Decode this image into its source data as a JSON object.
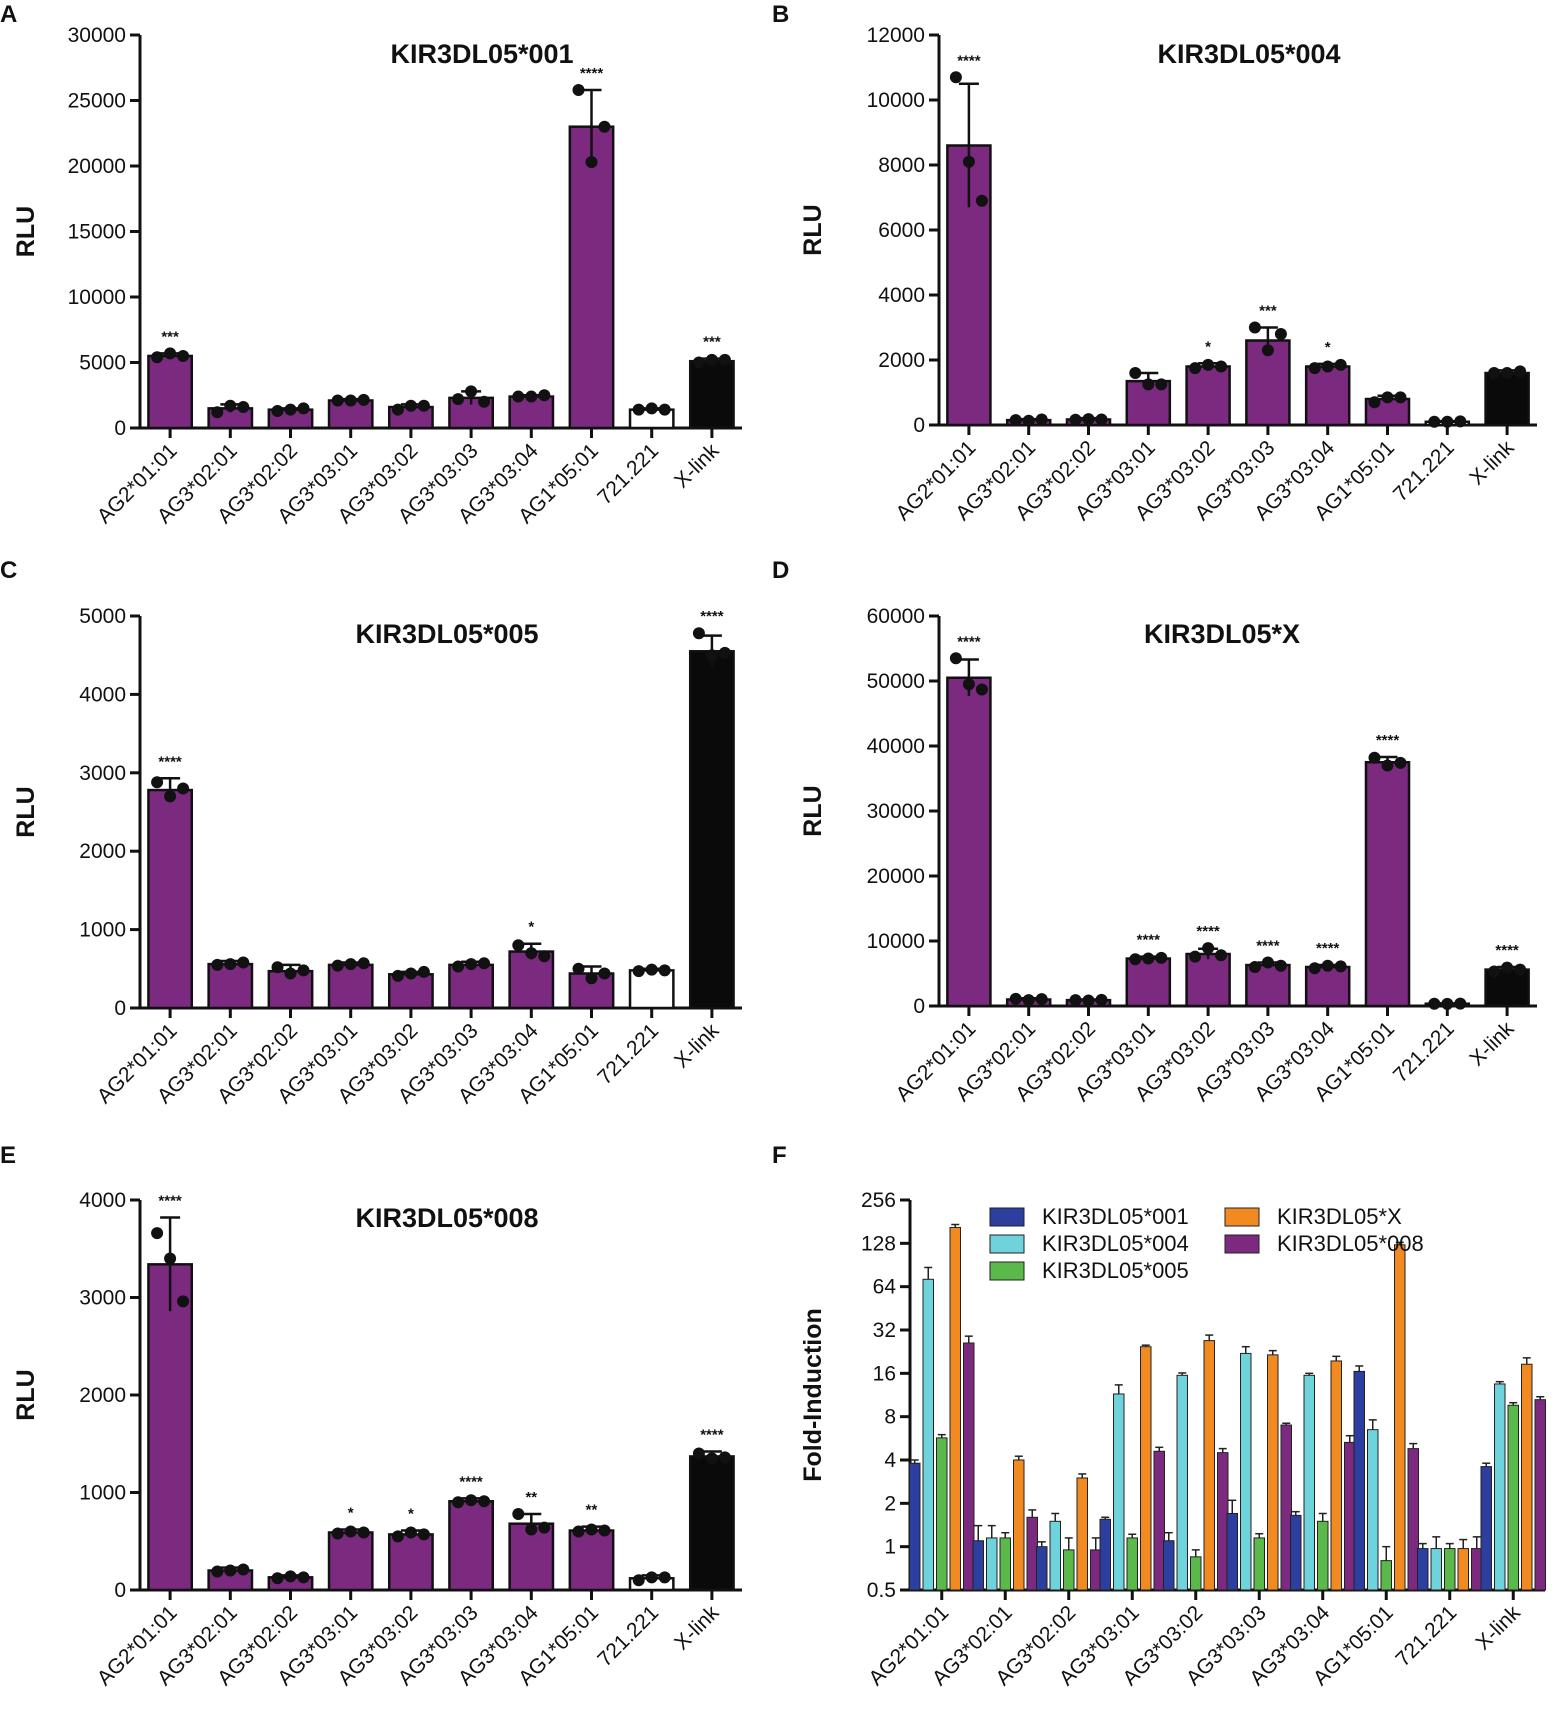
{
  "figure": {
    "panels": [
      {
        "letter": "A",
        "title": "KIR3DL05*001",
        "ylabel": "RLU"
      },
      {
        "letter": "B",
        "title": "KIR3DL05*004",
        "ylabel": "RLU"
      },
      {
        "letter": "C",
        "title": "KIR3DL05*005",
        "ylabel": "RLU"
      },
      {
        "letter": "D",
        "title": "KIR3DL05*X",
        "ylabel": "RLU"
      },
      {
        "letter": "E",
        "title": "KIR3DL05*008",
        "ylabel": "RLU"
      },
      {
        "letter": "F",
        "title": "",
        "ylabel": "Fold-Induction"
      }
    ]
  },
  "colors": {
    "purple": "#7b2a80",
    "black": "#0a0a0a",
    "white": "#ffffff",
    "series": [
      "#2c3e9e",
      "#6fd3dc",
      "#5ab94a",
      "#f28a22",
      "#7b2a80"
    ]
  },
  "chart_data": [
    {
      "type": "bar",
      "panel": "A",
      "title": "KIR3DL05*001",
      "xlabel": "",
      "ylabel": "RLU",
      "ylim": [
        0,
        30000
      ],
      "yticks": [
        "0",
        "5000",
        "10000",
        "15000",
        "20000",
        "25000",
        "30000"
      ],
      "categories": [
        "AG2*01:01",
        "AG3*02:01",
        "AG3*02:02",
        "AG3*03:01",
        "AG3*03:02",
        "AG3*03:03",
        "AG3*03:04",
        "AG1*05:01",
        "721.221",
        "X-link"
      ],
      "values": [
        5500,
        1500,
        1400,
        2100,
        1600,
        2300,
        2400,
        23000,
        1400,
        5100
      ],
      "errors": [
        200,
        300,
        100,
        100,
        200,
        500,
        100,
        2800,
        100,
        200
      ],
      "points": [
        [
          5400,
          5700,
          5500
        ],
        [
          1200,
          1700,
          1600
        ],
        [
          1300,
          1400,
          1500
        ],
        [
          2100,
          2100,
          2150
        ],
        [
          1400,
          1700,
          1700
        ],
        [
          2200,
          2800,
          2000
        ],
        [
          2400,
          2400,
          2500
        ],
        [
          25800,
          20300,
          23000
        ],
        [
          1400,
          1500,
          1400
        ],
        [
          5000,
          5200,
          5200
        ]
      ],
      "significance": [
        "***",
        "",
        "",
        "",
        "",
        "",
        "",
        "****",
        "",
        "***"
      ],
      "bar_colors": [
        "purple",
        "purple",
        "purple",
        "purple",
        "purple",
        "purple",
        "purple",
        "purple",
        "white",
        "black"
      ]
    },
    {
      "type": "bar",
      "panel": "B",
      "title": "KIR3DL05*004",
      "xlabel": "",
      "ylabel": "RLU",
      "ylim": [
        0,
        12000
      ],
      "yticks": [
        "0",
        "2000",
        "4000",
        "6000",
        "8000",
        "10000",
        "12000"
      ],
      "categories": [
        "AG2*01:01",
        "AG3*02:01",
        "AG3*02:02",
        "AG3*03:01",
        "AG3*03:02",
        "AG3*03:03",
        "AG3*03:04",
        "AG1*05:01",
        "721.221",
        "X-link"
      ],
      "values": [
        8600,
        150,
        170,
        1350,
        1800,
        2600,
        1800,
        800,
        100,
        1600
      ],
      "errors": [
        1900,
        30,
        40,
        250,
        100,
        400,
        80,
        100,
        20,
        80
      ],
      "points": [
        [
          10700,
          8100,
          6900
        ],
        [
          150,
          130,
          170
        ],
        [
          160,
          180,
          170
        ],
        [
          1600,
          1250,
          1250
        ],
        [
          1750,
          1850,
          1800
        ],
        [
          3000,
          2300,
          2800
        ],
        [
          1750,
          1800,
          1850
        ],
        [
          700,
          850,
          850
        ],
        [
          100,
          100,
          110
        ],
        [
          1600,
          1600,
          1650
        ]
      ],
      "significance": [
        "****",
        "",
        "",
        "",
        "*",
        "***",
        "*",
        "",
        "",
        ""
      ],
      "bar_colors": [
        "purple",
        "purple",
        "purple",
        "purple",
        "purple",
        "purple",
        "purple",
        "purple",
        "white",
        "black"
      ]
    },
    {
      "type": "bar",
      "panel": "C",
      "title": "KIR3DL05*005",
      "xlabel": "",
      "ylabel": "RLU",
      "ylim": [
        0,
        5000
      ],
      "yticks": [
        "0",
        "1000",
        "2000",
        "3000",
        "4000",
        "5000"
      ],
      "categories": [
        "AG2*01:01",
        "AG3*02:01",
        "AG3*02:02",
        "AG3*03:01",
        "AG3*03:02",
        "AG3*03:03",
        "AG3*03:04",
        "AG1*05:01",
        "721.221",
        "X-link"
      ],
      "values": [
        2780,
        560,
        470,
        550,
        430,
        550,
        720,
        440,
        480,
        4550
      ],
      "errors": [
        150,
        40,
        80,
        30,
        30,
        40,
        100,
        90,
        20,
        200
      ],
      "points": [
        [
          2880,
          2700,
          2800
        ],
        [
          550,
          560,
          580
        ],
        [
          520,
          440,
          480
        ],
        [
          540,
          560,
          570
        ],
        [
          410,
          440,
          460
        ],
        [
          530,
          560,
          570
        ],
        [
          800,
          700,
          660
        ],
        [
          500,
          380,
          440
        ],
        [
          470,
          490,
          480
        ],
        [
          4780,
          4500,
          4530
        ]
      ],
      "significance": [
        "****",
        "",
        "",
        "",
        "",
        "",
        "*",
        "",
        "",
        "****"
      ],
      "bar_colors": [
        "purple",
        "purple",
        "purple",
        "purple",
        "purple",
        "purple",
        "purple",
        "purple",
        "white",
        "black"
      ]
    },
    {
      "type": "bar",
      "panel": "D",
      "title": "KIR3DL05*X",
      "xlabel": "",
      "ylabel": "RLU",
      "ylim": [
        0,
        60000
      ],
      "yticks": [
        "0",
        "10000",
        "20000",
        "30000",
        "40000",
        "50000",
        "60000"
      ],
      "categories": [
        "AG2*01:01",
        "AG3*02:01",
        "AG3*02:02",
        "AG3*03:01",
        "AG3*03:02",
        "AG3*03:03",
        "AG3*03:04",
        "AG1*05:01",
        "721.221",
        "X-link"
      ],
      "values": [
        50500,
        1000,
        900,
        7300,
        8000,
        6300,
        6000,
        37500,
        350,
        5600
      ],
      "errors": [
        2800,
        200,
        100,
        300,
        800,
        400,
        300,
        800,
        50,
        400
      ],
      "points": [
        [
          53500,
          49500,
          48700
        ],
        [
          1100,
          900,
          1050
        ],
        [
          900,
          850,
          950
        ],
        [
          7200,
          7300,
          7400
        ],
        [
          7600,
          8900,
          7800
        ],
        [
          6000,
          6700,
          6200
        ],
        [
          5800,
          6200,
          6100
        ],
        [
          38200,
          37000,
          37400
        ],
        [
          350,
          330,
          370
        ],
        [
          5300,
          5900,
          5600
        ]
      ],
      "significance": [
        "****",
        "",
        "",
        "****",
        "****",
        "****",
        "****",
        "****",
        "",
        "****"
      ],
      "bar_colors": [
        "purple",
        "purple",
        "purple",
        "purple",
        "purple",
        "purple",
        "purple",
        "purple",
        "white",
        "black"
      ]
    },
    {
      "type": "bar",
      "panel": "E",
      "title": "KIR3DL05*008",
      "xlabel": "",
      "ylabel": "RLU",
      "ylim": [
        0,
        4000
      ],
      "yticks": [
        "0",
        "1000",
        "2000",
        "3000",
        "4000"
      ],
      "categories": [
        "AG2*01:01",
        "AG3*02:01",
        "AG3*02:02",
        "AG3*03:01",
        "AG3*03:02",
        "AG3*03:03",
        "AG3*03:04",
        "AG1*05:01",
        "721.221",
        "X-link"
      ],
      "values": [
        3340,
        200,
        130,
        590,
        570,
        910,
        680,
        610,
        120,
        1370
      ],
      "errors": [
        480,
        30,
        20,
        30,
        40,
        30,
        100,
        40,
        30,
        50
      ],
      "points": [
        [
          3660,
          3400,
          2960
        ],
        [
          190,
          200,
          210
        ],
        [
          120,
          140,
          130
        ],
        [
          580,
          600,
          590
        ],
        [
          550,
          590,
          570
        ],
        [
          900,
          920,
          910
        ],
        [
          780,
          620,
          640
        ],
        [
          600,
          620,
          610
        ],
        [
          100,
          130,
          130
        ],
        [
          1400,
          1350,
          1360
        ]
      ],
      "significance": [
        "****",
        "",
        "",
        "*",
        "*",
        "****",
        "**",
        "**",
        "",
        "****"
      ],
      "bar_colors": [
        "purple",
        "purple",
        "purple",
        "purple",
        "purple",
        "purple",
        "purple",
        "purple",
        "white",
        "black"
      ]
    },
    {
      "type": "bar",
      "panel": "F",
      "title": "",
      "xlabel": "",
      "ylabel": "Fold-Induction",
      "yscale": "log2",
      "ylim": [
        0.5,
        256
      ],
      "yticks": [
        "0.5",
        "1",
        "2",
        "4",
        "8",
        "16",
        "32",
        "64",
        "128",
        "256"
      ],
      "categories": [
        "AG2*01:01",
        "AG3*02:01",
        "AG3*02:02",
        "AG3*03:01",
        "AG3*03:02",
        "AG3*03:03",
        "AG3*03:04",
        "AG1*05:01",
        "721.221",
        "X-link"
      ],
      "legend": [
        "KIR3DL05*001",
        "KIR3DL05*004",
        "KIR3DL05*005",
        "KIR3DL05*X",
        "KIR3DL05*008"
      ],
      "legend_order": [
        0,
        3,
        1,
        4,
        2
      ],
      "series": [
        {
          "name": "KIR3DL05*001",
          "values": [
            3.8,
            1.1,
            1.0,
            1.55,
            1.1,
            1.7,
            1.65,
            16.5,
            0.97,
            3.6
          ],
          "errors": [
            0.2,
            0.3,
            0.08,
            0.05,
            0.15,
            0.4,
            0.1,
            1.5,
            0.08,
            0.2
          ]
        },
        {
          "name": "KIR3DL05*004",
          "values": [
            72,
            1.15,
            1.5,
            11.5,
            15.5,
            22,
            15.5,
            6.5,
            0.97,
            13.5
          ],
          "errors": [
            15,
            0.25,
            0.2,
            1.8,
            0.6,
            2.5,
            0.5,
            1.1,
            0.2,
            0.5
          ]
        },
        {
          "name": "KIR3DL05*005",
          "values": [
            5.7,
            1.15,
            0.95,
            1.15,
            0.85,
            1.15,
            1.5,
            0.8,
            0.97,
            9.6
          ],
          "errors": [
            0.3,
            0.1,
            0.2,
            0.07,
            0.1,
            0.08,
            0.2,
            0.2,
            0.08,
            0.4
          ]
        },
        {
          "name": "KIR3DL05*X",
          "values": [
            165,
            4.0,
            3.0,
            24.5,
            27,
            21.5,
            19.5,
            125,
            0.97,
            18.5
          ],
          "errors": [
            8,
            0.25,
            0.2,
            0.6,
            2.5,
            1.5,
            1.5,
            5,
            0.15,
            2.0
          ]
        },
        {
          "name": "KIR3DL05*008",
          "values": [
            26,
            1.6,
            0.95,
            4.6,
            4.5,
            7.0,
            5.3,
            4.8,
            0.97,
            10.5
          ],
          "errors": [
            3,
            0.2,
            0.2,
            0.3,
            0.3,
            0.2,
            0.6,
            0.4,
            0.2,
            0.5
          ]
        }
      ]
    }
  ]
}
